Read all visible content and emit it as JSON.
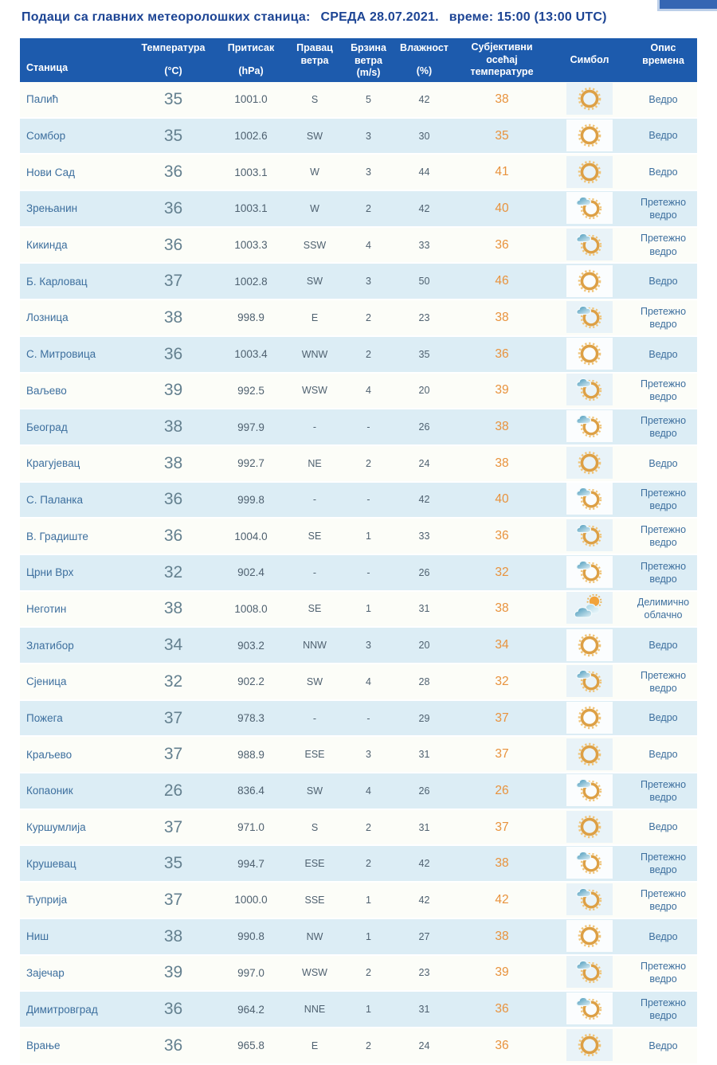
{
  "page": {
    "title": "Подаци са главних метеоролошких станица:",
    "date": "СРЕДА 28.07.2021.",
    "time": "време: 15:00 (13:00 UTC)"
  },
  "colors": {
    "header_bg": "#1d5bad",
    "title_blue": "#1c4494",
    "station_blue": "#3d6f9e",
    "value_gray": "#4f6170",
    "accent_orange": "#e8923c",
    "row_stripe": "#dcedf5",
    "row_white": "#fcfdf8"
  },
  "icons": {
    "clear": "clear-sun-icon",
    "mostly-clear": "sun-with-small-cloud-icon",
    "partly-cloudy": "sun-behind-clouds-icon"
  },
  "table": {
    "columns": [
      {
        "label": "Станица",
        "unit": ""
      },
      {
        "label": "Температура",
        "unit": "(°C)"
      },
      {
        "label": "Притисак",
        "unit": "(hPa)"
      },
      {
        "label": "Правац ветра",
        "unit": ""
      },
      {
        "label": "Брзина ветра",
        "unit": "(m/s)"
      },
      {
        "label": "Влажност",
        "unit": "(%)"
      },
      {
        "label": "Субјективни осећај температуре",
        "unit": ""
      },
      {
        "label": "Симбол",
        "unit": ""
      },
      {
        "label": "Опис времена",
        "unit": ""
      }
    ],
    "rows": [
      {
        "station": "Палић",
        "temp": "35",
        "pressure": "1001.0",
        "wind_dir": "S",
        "wind_speed": "5",
        "humidity": "42",
        "feels_like": "38",
        "symbol": "clear",
        "description": "Ведро"
      },
      {
        "station": "Сомбор",
        "temp": "35",
        "pressure": "1002.6",
        "wind_dir": "SW",
        "wind_speed": "3",
        "humidity": "30",
        "feels_like": "35",
        "symbol": "clear",
        "description": "Ведро"
      },
      {
        "station": "Нови Сад",
        "temp": "36",
        "pressure": "1003.1",
        "wind_dir": "W",
        "wind_speed": "3",
        "humidity": "44",
        "feels_like": "41",
        "symbol": "clear",
        "description": "Ведро"
      },
      {
        "station": "Зрењанин",
        "temp": "36",
        "pressure": "1003.1",
        "wind_dir": "W",
        "wind_speed": "2",
        "humidity": "42",
        "feels_like": "40",
        "symbol": "mostly-clear",
        "description": "Претежно ведро"
      },
      {
        "station": "Кикинда",
        "temp": "36",
        "pressure": "1003.3",
        "wind_dir": "SSW",
        "wind_speed": "4",
        "humidity": "33",
        "feels_like": "36",
        "symbol": "mostly-clear",
        "description": "Претежно ведро"
      },
      {
        "station": "Б. Карловац",
        "temp": "37",
        "pressure": "1002.8",
        "wind_dir": "SW",
        "wind_speed": "3",
        "humidity": "50",
        "feels_like": "46",
        "symbol": "clear",
        "description": "Ведро"
      },
      {
        "station": "Лозница",
        "temp": "38",
        "pressure": "998.9",
        "wind_dir": "E",
        "wind_speed": "2",
        "humidity": "23",
        "feels_like": "38",
        "symbol": "mostly-clear",
        "description": "Претежно ведро"
      },
      {
        "station": "С. Митровица",
        "temp": "36",
        "pressure": "1003.4",
        "wind_dir": "WNW",
        "wind_speed": "2",
        "humidity": "35",
        "feels_like": "36",
        "symbol": "clear",
        "description": "Ведро"
      },
      {
        "station": "Ваљево",
        "temp": "39",
        "pressure": "992.5",
        "wind_dir": "WSW",
        "wind_speed": "4",
        "humidity": "20",
        "feels_like": "39",
        "symbol": "mostly-clear",
        "description": "Претежно ведро"
      },
      {
        "station": "Београд",
        "temp": "38",
        "pressure": "997.9",
        "wind_dir": "-",
        "wind_speed": "-",
        "humidity": "26",
        "feels_like": "38",
        "symbol": "mostly-clear",
        "description": "Претежно ведро"
      },
      {
        "station": "Крагујевац",
        "temp": "38",
        "pressure": "992.7",
        "wind_dir": "NE",
        "wind_speed": "2",
        "humidity": "24",
        "feels_like": "38",
        "symbol": "clear",
        "description": "Ведро"
      },
      {
        "station": "С. Паланка",
        "temp": "36",
        "pressure": "999.8",
        "wind_dir": "-",
        "wind_speed": "-",
        "humidity": "42",
        "feels_like": "40",
        "symbol": "mostly-clear",
        "description": "Претежно ведро"
      },
      {
        "station": "В. Градиште",
        "temp": "36",
        "pressure": "1004.0",
        "wind_dir": "SE",
        "wind_speed": "1",
        "humidity": "33",
        "feels_like": "36",
        "symbol": "mostly-clear",
        "description": "Претежно ведро"
      },
      {
        "station": "Црни Врх",
        "temp": "32",
        "pressure": "902.4",
        "wind_dir": "-",
        "wind_speed": "-",
        "humidity": "26",
        "feels_like": "32",
        "symbol": "mostly-clear",
        "description": "Претежно ведро"
      },
      {
        "station": "Неготин",
        "temp": "38",
        "pressure": "1008.0",
        "wind_dir": "SE",
        "wind_speed": "1",
        "humidity": "31",
        "feels_like": "38",
        "symbol": "partly-cloudy",
        "description": "Делимично облачно"
      },
      {
        "station": "Златибор",
        "temp": "34",
        "pressure": "903.2",
        "wind_dir": "NNW",
        "wind_speed": "3",
        "humidity": "20",
        "feels_like": "34",
        "symbol": "clear",
        "description": "Ведро"
      },
      {
        "station": "Сјеница",
        "temp": "32",
        "pressure": "902.2",
        "wind_dir": "SW",
        "wind_speed": "4",
        "humidity": "28",
        "feels_like": "32",
        "symbol": "mostly-clear",
        "description": "Претежно ведро"
      },
      {
        "station": "Пожега",
        "temp": "37",
        "pressure": "978.3",
        "wind_dir": "-",
        "wind_speed": "-",
        "humidity": "29",
        "feels_like": "37",
        "symbol": "clear",
        "description": "Ведро"
      },
      {
        "station": "Краљево",
        "temp": "37",
        "pressure": "988.9",
        "wind_dir": "ESE",
        "wind_speed": "3",
        "humidity": "31",
        "feels_like": "37",
        "symbol": "clear",
        "description": "Ведро"
      },
      {
        "station": "Копаоник",
        "temp": "26",
        "pressure": "836.4",
        "wind_dir": "SW",
        "wind_speed": "4",
        "humidity": "26",
        "feels_like": "26",
        "symbol": "mostly-clear",
        "description": "Претежно ведро"
      },
      {
        "station": "Куршумлија",
        "temp": "37",
        "pressure": "971.0",
        "wind_dir": "S",
        "wind_speed": "2",
        "humidity": "31",
        "feels_like": "37",
        "symbol": "clear",
        "description": "Ведро"
      },
      {
        "station": "Крушевац",
        "temp": "35",
        "pressure": "994.7",
        "wind_dir": "ESE",
        "wind_speed": "2",
        "humidity": "42",
        "feels_like": "38",
        "symbol": "mostly-clear",
        "description": "Претежно ведро"
      },
      {
        "station": "Ћуприја",
        "temp": "37",
        "pressure": "1000.0",
        "wind_dir": "SSE",
        "wind_speed": "1",
        "humidity": "42",
        "feels_like": "42",
        "symbol": "mostly-clear",
        "description": "Претежно ведро"
      },
      {
        "station": "Ниш",
        "temp": "38",
        "pressure": "990.8",
        "wind_dir": "NW",
        "wind_speed": "1",
        "humidity": "27",
        "feels_like": "38",
        "symbol": "clear",
        "description": "Ведро"
      },
      {
        "station": "Зајечар",
        "temp": "39",
        "pressure": "997.0",
        "wind_dir": "WSW",
        "wind_speed": "2",
        "humidity": "23",
        "feels_like": "39",
        "symbol": "mostly-clear",
        "description": "Претежно ведро"
      },
      {
        "station": "Димитровград",
        "temp": "36",
        "pressure": "964.2",
        "wind_dir": "NNE",
        "wind_speed": "1",
        "humidity": "31",
        "feels_like": "36",
        "symbol": "mostly-clear",
        "description": "Претежно ведро"
      },
      {
        "station": "Врање",
        "temp": "36",
        "pressure": "965.8",
        "wind_dir": "E",
        "wind_speed": "2",
        "humidity": "24",
        "feels_like": "36",
        "symbol": "clear",
        "description": "Ведро"
      }
    ]
  }
}
